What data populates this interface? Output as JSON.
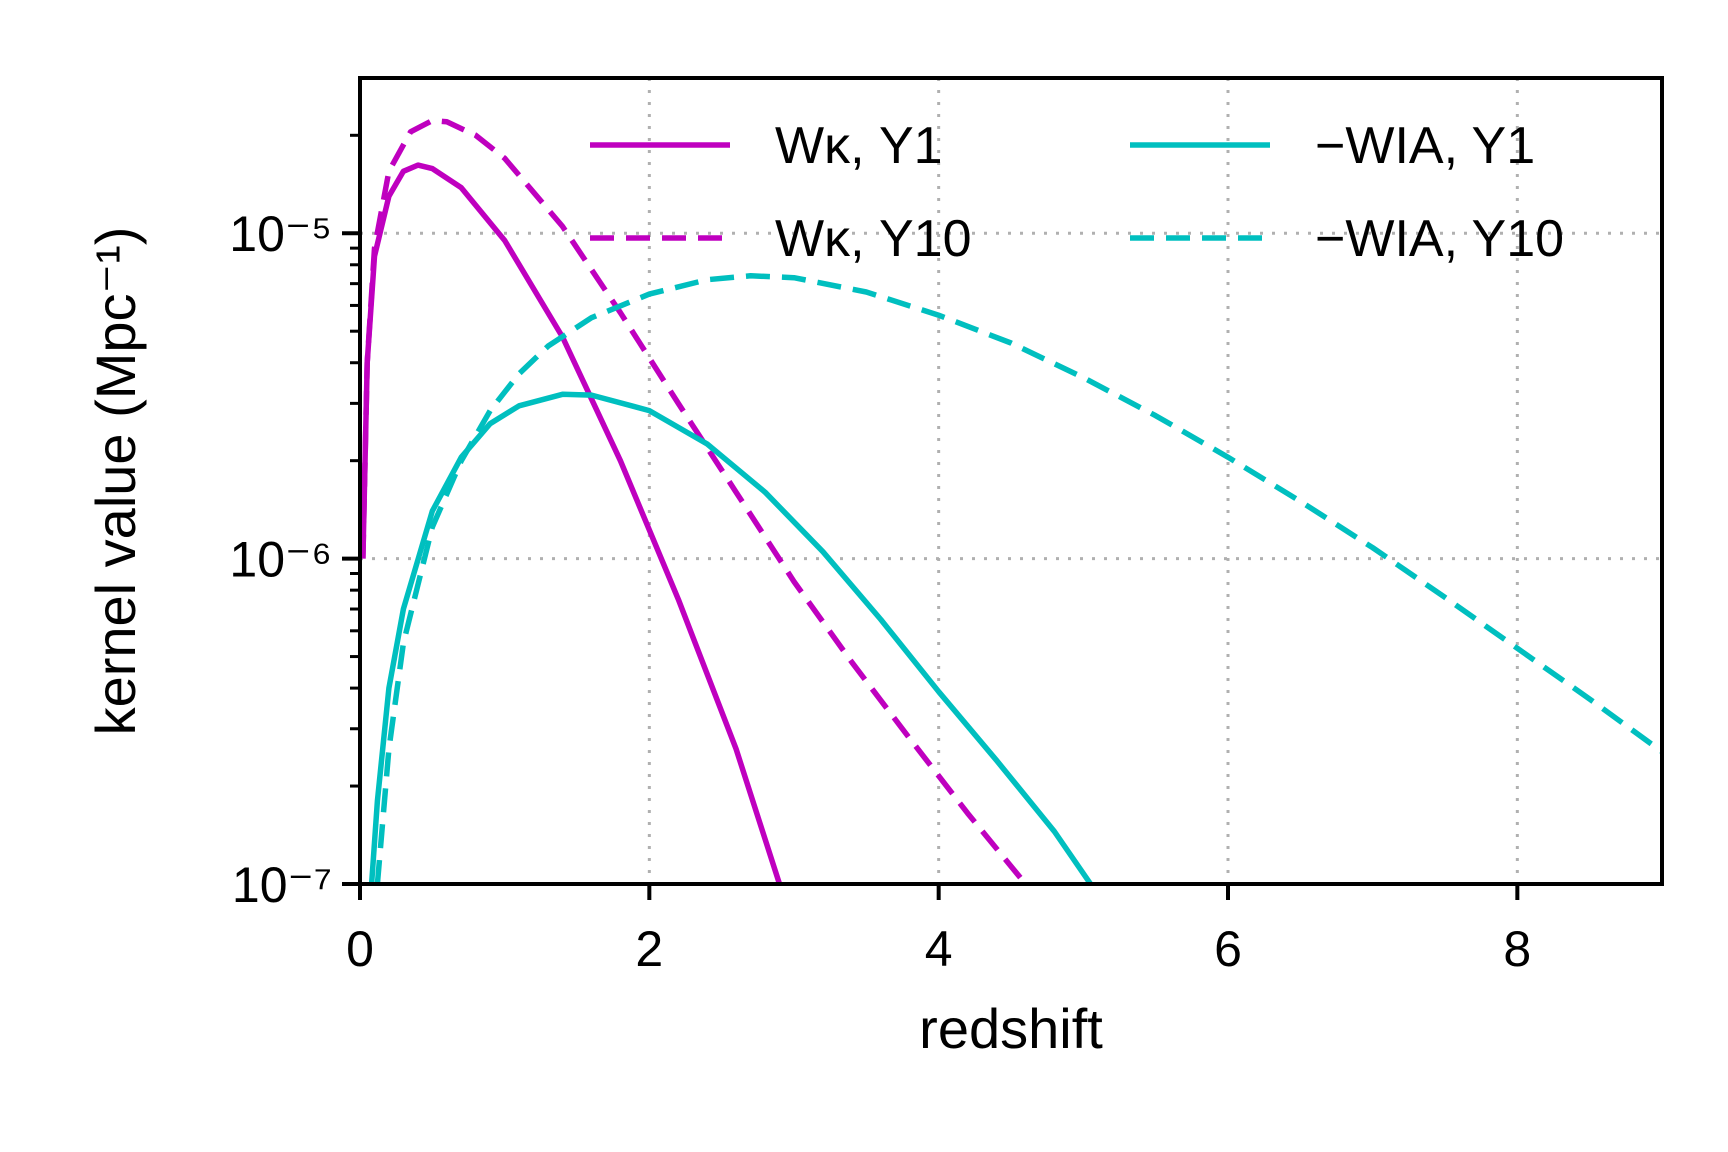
{
  "chart_data": {
    "type": "line",
    "xlabel": "redshift",
    "ylabel": "kernel value (Mpc⁻¹)",
    "xlim": [
      0,
      9
    ],
    "ylim": [
      1e-07,
      3e-05
    ],
    "y_scale": "log",
    "grid": true,
    "legend_placement": "top-right",
    "x_ticks": [
      0,
      2,
      4,
      6,
      8
    ],
    "x_tick_labels": [
      "0",
      "2",
      "4",
      "6",
      "8"
    ],
    "y_ticks": [
      1e-07,
      1e-06,
      1e-05
    ],
    "y_tick_labels": [
      "10⁻⁷",
      "10⁻⁶",
      "10⁻⁵"
    ],
    "colors": {
      "kappa": "#bf00bf",
      "ia": "#00bfbf"
    },
    "series": [
      {
        "name": "Wκ, Y1",
        "color": "#bf00bf",
        "dash": "solid",
        "points": [
          [
            0.02,
            1e-06
          ],
          [
            0.05,
            4e-06
          ],
          [
            0.1,
            8.5e-06
          ],
          [
            0.2,
            1.3e-05
          ],
          [
            0.3,
            1.55e-05
          ],
          [
            0.4,
            1.62e-05
          ],
          [
            0.5,
            1.58e-05
          ],
          [
            0.7,
            1.38e-05
          ],
          [
            1.0,
            9.5e-06
          ],
          [
            1.4,
            4.8e-06
          ],
          [
            1.8,
            2e-06
          ],
          [
            2.2,
            7.5e-07
          ],
          [
            2.6,
            2.6e-07
          ],
          [
            2.9,
            1e-07
          ]
        ]
      },
      {
        "name": "Wκ, Y10",
        "color": "#bf00bf",
        "dash": "dashed",
        "points": [
          [
            0.02,
            1e-06
          ],
          [
            0.05,
            4e-06
          ],
          [
            0.1,
            9e-06
          ],
          [
            0.2,
            1.55e-05
          ],
          [
            0.35,
            2.05e-05
          ],
          [
            0.5,
            2.22e-05
          ],
          [
            0.6,
            2.2e-05
          ],
          [
            0.8,
            2e-05
          ],
          [
            1.0,
            1.7e-05
          ],
          [
            1.4,
            1.05e-05
          ],
          [
            1.8,
            5.7e-06
          ],
          [
            2.2,
            3e-06
          ],
          [
            2.6,
            1.6e-06
          ],
          [
            3.0,
            8.5e-07
          ],
          [
            3.4,
            4.8e-07
          ],
          [
            3.8,
            2.8e-07
          ],
          [
            4.2,
            1.65e-07
          ],
          [
            4.6,
            1e-07
          ]
        ]
      },
      {
        "name": "−WIA, Y1",
        "color": "#00bfbf",
        "dash": "solid",
        "points": [
          [
            0.08,
            1e-07
          ],
          [
            0.12,
            1.8e-07
          ],
          [
            0.2,
            4e-07
          ],
          [
            0.3,
            7e-07
          ],
          [
            0.5,
            1.4e-06
          ],
          [
            0.7,
            2.05e-06
          ],
          [
            0.9,
            2.6e-06
          ],
          [
            1.1,
            2.95e-06
          ],
          [
            1.4,
            3.2e-06
          ],
          [
            1.6,
            3.18e-06
          ],
          [
            2.0,
            2.85e-06
          ],
          [
            2.4,
            2.25e-06
          ],
          [
            2.8,
            1.6e-06
          ],
          [
            3.2,
            1.05e-06
          ],
          [
            3.6,
            6.5e-07
          ],
          [
            4.0,
            3.9e-07
          ],
          [
            4.4,
            2.4e-07
          ],
          [
            4.8,
            1.45e-07
          ],
          [
            5.05,
            1e-07
          ]
        ]
      },
      {
        "name": "−WIA, Y10",
        "color": "#00bfbf",
        "dash": "dashed",
        "points": [
          [
            0.12,
            1e-07
          ],
          [
            0.2,
            2.6e-07
          ],
          [
            0.3,
            5.5e-07
          ],
          [
            0.5,
            1.25e-06
          ],
          [
            0.7,
            2e-06
          ],
          [
            0.9,
            2.85e-06
          ],
          [
            1.1,
            3.7e-06
          ],
          [
            1.3,
            4.5e-06
          ],
          [
            1.6,
            5.5e-06
          ],
          [
            2.0,
            6.5e-06
          ],
          [
            2.4,
            7.2e-06
          ],
          [
            2.7,
            7.4e-06
          ],
          [
            3.0,
            7.3e-06
          ],
          [
            3.5,
            6.6e-06
          ],
          [
            4.0,
            5.6e-06
          ],
          [
            4.5,
            4.6e-06
          ],
          [
            5.0,
            3.6e-06
          ],
          [
            5.5,
            2.75e-06
          ],
          [
            6.0,
            2.05e-06
          ],
          [
            6.5,
            1.5e-06
          ],
          [
            7.0,
            1.08e-06
          ],
          [
            7.5,
            7.6e-07
          ],
          [
            8.0,
            5.3e-07
          ],
          [
            8.5,
            3.7e-07
          ],
          [
            9.0,
            2.55e-07
          ]
        ]
      }
    ]
  }
}
